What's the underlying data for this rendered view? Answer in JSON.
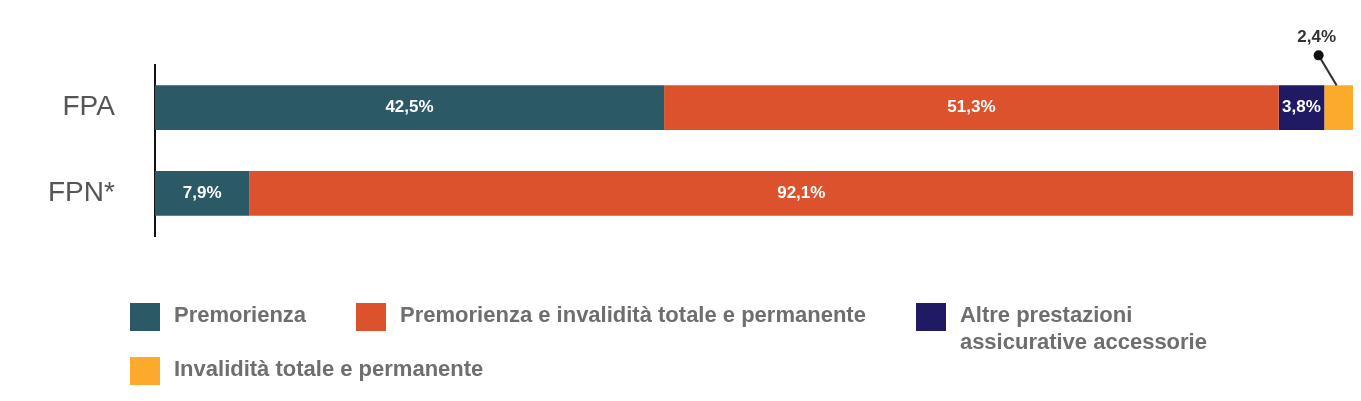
{
  "chart_data": {
    "type": "bar",
    "orientation": "horizontal",
    "stacked": true,
    "categories": [
      "FPA",
      "FPN*"
    ],
    "xlim": [
      0,
      100
    ],
    "tick_labels": "y",
    "legend": "bottom",
    "series": [
      {
        "name": "Premorienza",
        "color": "#2b5a66",
        "values": [
          42.5,
          7.9
        ],
        "value_labels": [
          "42,5%",
          "7,9%"
        ]
      },
      {
        "name": "Premorienza e invalidità totale e permanente",
        "color": "#dc522c",
        "values": [
          51.3,
          92.1
        ],
        "value_labels": [
          "51,3%",
          "92,1%"
        ]
      },
      {
        "name": "Altre prestazioni assicurative accessorie",
        "color": "#1f1a63",
        "values": [
          3.8,
          null
        ],
        "value_labels": [
          "3,8%",
          null
        ]
      },
      {
        "name": "Invalidità totale e permanente",
        "color": "#fbaa2c",
        "values": [
          2.4,
          null
        ],
        "value_labels": [
          "2,4%",
          null
        ]
      }
    ]
  }
}
